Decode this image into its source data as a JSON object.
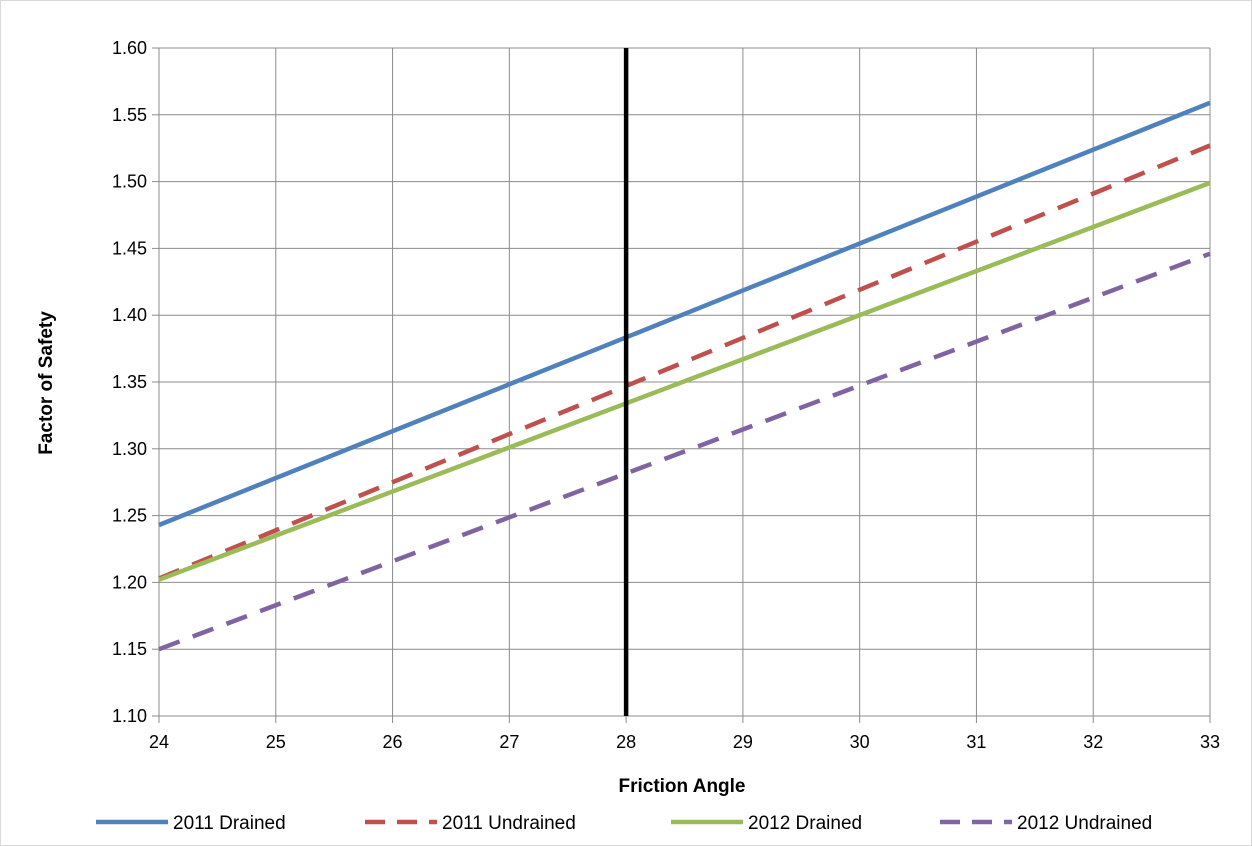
{
  "chart_data": {
    "type": "line",
    "title": "",
    "xlabel": "Friction Angle",
    "ylabel": "Factor of Safety",
    "xlim": [
      24,
      33
    ],
    "ylim": [
      1.1,
      1.6
    ],
    "x_ticks": [
      "24",
      "25",
      "26",
      "27",
      "28",
      "29",
      "30",
      "31",
      "32",
      "33"
    ],
    "y_ticks": [
      "1.10",
      "1.15",
      "1.20",
      "1.25",
      "1.30",
      "1.35",
      "1.40",
      "1.45",
      "1.50",
      "1.55",
      "1.60"
    ],
    "grid": true,
    "legend_position": "bottom",
    "reference_line": {
      "x": 28,
      "color": "#000000"
    },
    "series": [
      {
        "name": "2011 Drained",
        "color": "#4F81BD",
        "dashed": false,
        "x": [
          24,
          33
        ],
        "values": [
          1.243,
          1.559
        ]
      },
      {
        "name": "2011 Undrained",
        "color": "#C0504D",
        "dashed": true,
        "x": [
          24,
          33
        ],
        "values": [
          1.203,
          1.527
        ]
      },
      {
        "name": "2012 Drained",
        "color": "#9BBB59",
        "dashed": false,
        "x": [
          24,
          33
        ],
        "values": [
          1.202,
          1.499
        ]
      },
      {
        "name": "2012 Undrained",
        "color": "#8064A2",
        "dashed": true,
        "x": [
          24,
          33
        ],
        "values": [
          1.15,
          1.446
        ]
      }
    ]
  }
}
